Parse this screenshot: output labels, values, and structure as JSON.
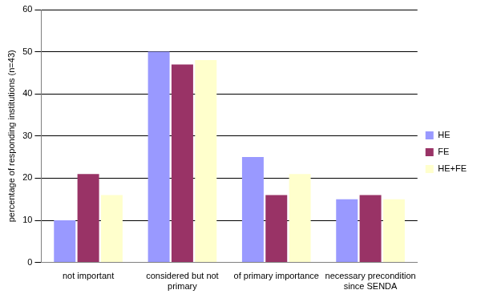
{
  "chart_data": {
    "type": "bar",
    "y_label": "percentage of responding institutions (n=43)",
    "categories": [
      "not important",
      "considered but not primary",
      "of primary importance",
      "necessary precondition since SENDA"
    ],
    "series": [
      {
        "name": "HE",
        "color": "#9999ff",
        "values": [
          10,
          50,
          25,
          15
        ]
      },
      {
        "name": "FE",
        "color": "#993366",
        "values": [
          21,
          47,
          16,
          16
        ]
      },
      {
        "name": "HE+FE",
        "color": "#ffffcc",
        "values": [
          16,
          48,
          21,
          15
        ]
      }
    ],
    "ylim": [
      0,
      60
    ],
    "yticks": [
      0,
      10,
      20,
      30,
      40,
      50,
      60
    ],
    "grid": true,
    "legend": "right"
  }
}
